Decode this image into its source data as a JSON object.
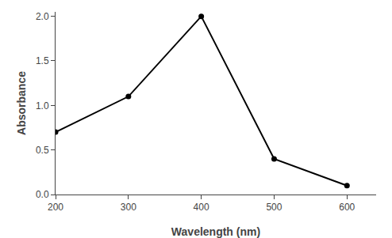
{
  "chart_data": {
    "type": "line",
    "x": [
      200,
      300,
      400,
      500,
      600
    ],
    "values": [
      0.7,
      1.1,
      2.0,
      0.4,
      0.1
    ],
    "color": "#000000",
    "marker": "circle",
    "xlabel": "Wavelength (nm)",
    "ylabel": "Absorbance",
    "xlim": [
      200,
      640
    ],
    "ylim": [
      0.0,
      2.05
    ],
    "xticks": [
      200,
      300,
      400,
      500,
      600
    ],
    "yticks": [
      {
        "value": 0,
        "label": "0.0"
      },
      0.5,
      {
        "value": 1,
        "label": "1.0"
      },
      1.5,
      {
        "value": 2,
        "label": "2.0"
      }
    ],
    "grid": false
  }
}
